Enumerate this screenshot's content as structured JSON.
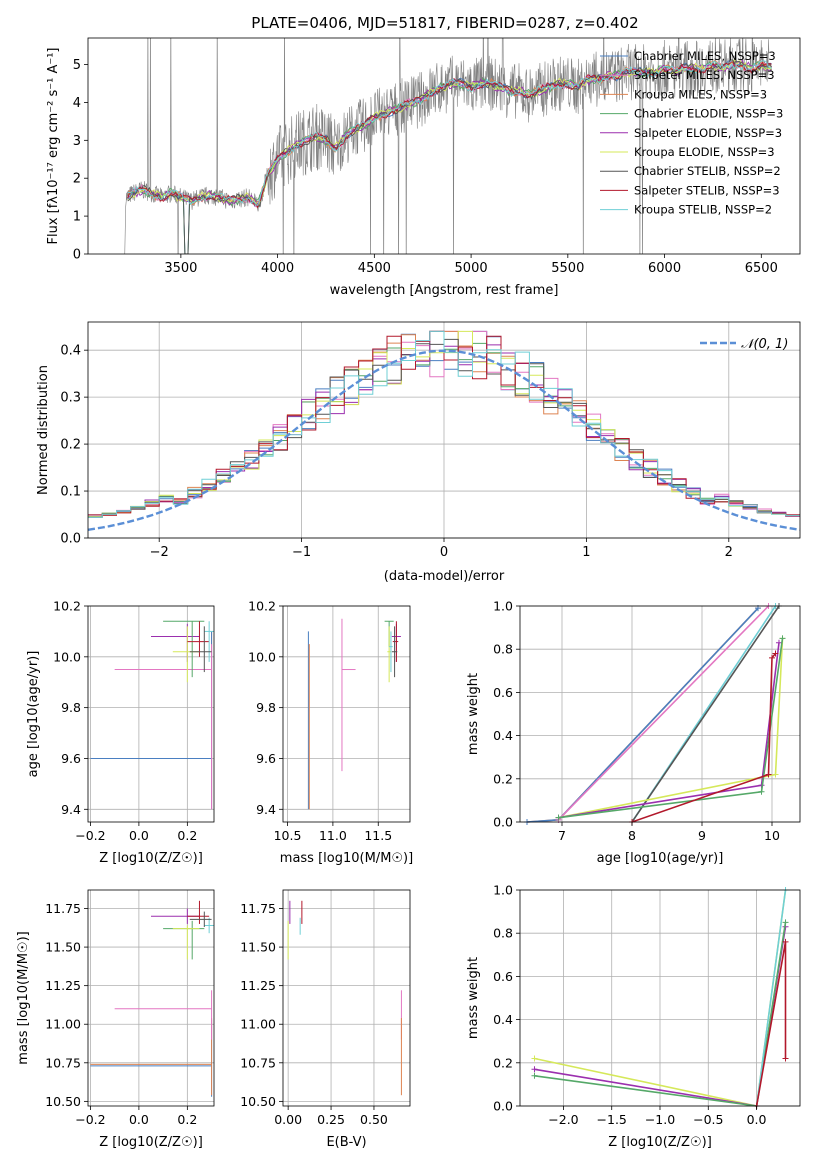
{
  "colors": {
    "chabrier_miles": "#4a7fc1",
    "salpeter_miles": "#e377c2",
    "kroupa_miles": "#dd8452",
    "chabrier_elodie": "#55a868",
    "salpeter_elodie": "#9b2fae",
    "kroupa_elodie": "#d5e85a",
    "chabrier_stelib": "#555555",
    "salpeter_stelib": "#b2182b",
    "kroupa_stelib": "#6fcfd6",
    "data_gray": "#808080",
    "gauss": "#5b8fd6"
  },
  "chart_data": [
    {
      "type": "line",
      "title": "PLATE=0406, MJD=51817, FIBERID=0287, z=0.402",
      "xlabel": "wavelength [Angstrom, rest frame]",
      "ylabel": "Flux [fλ10⁻¹⁷ erg cm⁻² s⁻¹ A⁻¹]",
      "xlim": [
        3020,
        6700
      ],
      "ylim": [
        0,
        5.7
      ],
      "xticks": [
        3500,
        4000,
        4500,
        5000,
        5500,
        6000,
        6500
      ],
      "yticks": [
        0,
        1,
        2,
        3,
        4,
        5
      ],
      "legend": {
        "placement": "top-right",
        "entries": [
          "Chabrier MILES, NSSP=3",
          "Salpeter MILES, NSSP=3",
          "Kroupa MILES, NSSP=3",
          "Chabrier ELODIE, NSSP=3",
          "Salpeter ELODIE, NSSP=3",
          "Kroupa ELODIE, NSSP=3",
          "Chabrier STELIB, NSSP=2",
          "Salpeter STELIB, NSSP=3",
          "Kroupa STELIB, NSSP=2"
        ]
      },
      "model_x": [
        3220,
        3250,
        3300,
        3350,
        3400,
        3450,
        3500,
        3550,
        3600,
        3650,
        3700,
        3750,
        3800,
        3850,
        3900,
        3950,
        4000,
        4050,
        4100,
        4150,
        4200,
        4250,
        4300,
        4350,
        4400,
        4450,
        4500,
        4550,
        4600,
        4650,
        4700,
        4750,
        4800,
        4850,
        4900,
        4950,
        5000,
        5050,
        5100,
        5150,
        5200,
        5250,
        5300,
        5350,
        5400,
        5450,
        5500,
        5550,
        5600,
        5650,
        5700,
        5750,
        5800,
        5850,
        5900,
        5950,
        6000,
        6050,
        6100,
        6150,
        6200,
        6250,
        6300,
        6350,
        6400,
        6450,
        6500,
        6550
      ],
      "model_y": [
        1.5,
        1.6,
        1.7,
        1.6,
        1.5,
        1.6,
        1.5,
        1.4,
        1.5,
        1.55,
        1.5,
        1.4,
        1.45,
        1.5,
        1.3,
        2.1,
        2.5,
        2.7,
        2.9,
        3.0,
        3.1,
        3.0,
        2.8,
        3.1,
        3.3,
        3.4,
        3.6,
        3.7,
        3.8,
        3.9,
        4.0,
        4.1,
        4.3,
        4.4,
        4.5,
        4.5,
        4.4,
        4.5,
        4.5,
        4.4,
        4.3,
        4.3,
        4.2,
        4.3,
        4.4,
        4.5,
        4.5,
        4.4,
        4.6,
        4.6,
        4.7,
        4.7,
        4.8,
        4.8,
        4.8,
        4.8,
        4.9,
        4.8,
        4.9,
        4.9,
        4.9,
        5.0,
        4.9,
        5.0,
        5.0,
        4.9,
        5.0,
        4.9
      ]
    },
    {
      "type": "line",
      "xlabel": "(data-model)/error",
      "ylabel": "Normed distribution",
      "xlim": [
        -2.5,
        2.5
      ],
      "ylim": [
        0,
        0.46
      ],
      "xticks": [
        -2,
        -1,
        0,
        1,
        2
      ],
      "yticks": [
        0.0,
        0.1,
        0.2,
        0.3,
        0.4
      ],
      "legend": {
        "placement": "top-right",
        "entries": [
          "𝒩(0, 1)"
        ]
      },
      "hist_bins": [
        -2.5,
        -2.4,
        -2.3,
        -2.2,
        -2.1,
        -2.0,
        -1.9,
        -1.8,
        -1.7,
        -1.6,
        -1.5,
        -1.4,
        -1.3,
        -1.2,
        -1.1,
        -1.0,
        -0.9,
        -0.8,
        -0.7,
        -0.6,
        -0.5,
        -0.4,
        -0.3,
        -0.2,
        -0.1,
        0.0,
        0.1,
        0.2,
        0.3,
        0.4,
        0.5,
        0.6,
        0.7,
        0.8,
        0.9,
        1.0,
        1.1,
        1.2,
        1.3,
        1.4,
        1.5,
        1.6,
        1.7,
        1.8,
        1.9,
        2.0,
        2.1,
        2.2,
        2.3,
        2.4,
        2.5
      ]
    },
    {
      "type": "scatter",
      "xlabel": "Z [log10(Z/Z☉)]",
      "ylabel": "age  [log10(age/yr)]",
      "xlim": [
        -0.21,
        0.31
      ],
      "ylim": [
        9.35,
        10.2
      ],
      "xticks": [
        -0.2,
        0.0,
        0.2
      ],
      "yticks": [
        9.4,
        9.6,
        9.8,
        10.0,
        10.2
      ]
    },
    {
      "type": "scatter",
      "xlabel": "mass [log10(M/M☉)]",
      "xlim": [
        10.45,
        11.85
      ],
      "ylim": [
        9.35,
        10.2
      ],
      "xticks": [
        10.5,
        11.0,
        11.5
      ],
      "yticks": [
        9.4,
        9.6,
        9.8,
        10.0,
        10.2
      ]
    },
    {
      "type": "line",
      "xlabel": "age  [log10(age/yr)]",
      "ylabel": "mass weight",
      "xlim": [
        6.4,
        10.4
      ],
      "ylim": [
        0,
        1
      ],
      "xticks": [
        7,
        8,
        9,
        10
      ],
      "yticks": [
        0.0,
        0.2,
        0.4,
        0.6,
        0.8,
        1.0
      ]
    },
    {
      "type": "scatter",
      "xlabel": "Z [log10(Z/Z☉)]",
      "ylabel": "mass [log10(M/M☉)]",
      "xlim": [
        -0.21,
        0.31
      ],
      "ylim": [
        10.47,
        11.87
      ],
      "xticks": [
        -0.2,
        0.0,
        0.2
      ],
      "yticks": [
        10.5,
        10.75,
        11.0,
        11.25,
        11.5,
        11.75
      ]
    },
    {
      "type": "scatter",
      "xlabel": "E(B-V)",
      "xlim": [
        -0.03,
        0.71
      ],
      "ylim": [
        10.47,
        11.87
      ],
      "xticks": [
        0.0,
        0.25,
        0.5
      ],
      "yticks": [
        10.5,
        10.75,
        11.0,
        11.25,
        11.5,
        11.75
      ]
    },
    {
      "type": "line",
      "xlabel": "Z [log10(Z/Z☉)]",
      "ylabel": "mass weight",
      "xlim": [
        -2.45,
        0.45
      ],
      "ylim": [
        0,
        1
      ],
      "xticks": [
        -2.0,
        -1.5,
        -1.0,
        -0.5,
        0.0
      ],
      "yticks": [
        0.0,
        0.2,
        0.4,
        0.6,
        0.8,
        1.0
      ]
    }
  ]
}
